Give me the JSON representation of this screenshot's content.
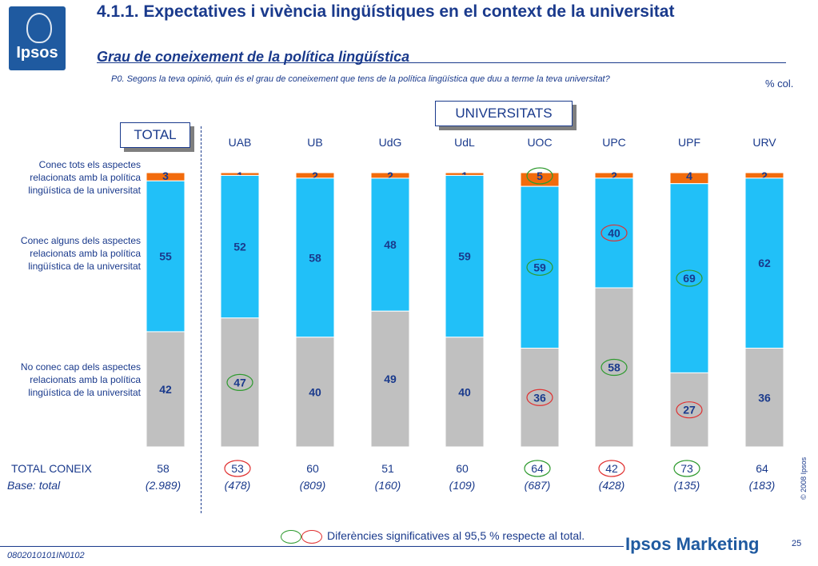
{
  "header": {
    "logo_text": "Ipsos",
    "title": "4.1.1. Expectatives i vivència lingüístiques en el context de la universitat",
    "subtitle": "Grau de coneixement de la política lingüística",
    "question": "P0. Segons la teva opinió, quin és el grau de coneixement que tens de la política lingüística que duu a terme la teva universitat?",
    "unit": "% col."
  },
  "labels": {
    "total_box": "TOTAL",
    "univ_box": "UNIVERSITATS",
    "row_all": [
      "Conec tots els aspectes",
      "relacionats amb la política",
      "lingüística de la universitat"
    ],
    "row_some": [
      "Conec alguns dels aspectes",
      "relacionats amb la política",
      "lingüística de la universitat"
    ],
    "row_none": [
      "No conec cap dels aspectes",
      "relacionats amb la política",
      "lingüística de la universitat"
    ],
    "total_coneix_label": "TOTAL CONEIX",
    "base_label": "Base: total"
  },
  "chart_data": {
    "type": "bar",
    "stacked": true,
    "unit": "% col.",
    "categories": [
      "TOTAL",
      "UAB",
      "UB",
      "UdG",
      "UdL",
      "UOC",
      "UPC",
      "UPF",
      "URV"
    ],
    "series": [
      {
        "name": "Conec tots els aspectes relacionats amb la política lingüística de la universitat",
        "color": "#f26b0c",
        "values": [
          3,
          1,
          2,
          2,
          1,
          5,
          2,
          4,
          2
        ]
      },
      {
        "name": "Conec alguns dels aspectes relacionats amb la política lingüística de la universitat",
        "color": "#21c0f8",
        "values": [
          55,
          52,
          58,
          48,
          59,
          59,
          40,
          69,
          62
        ]
      },
      {
        "name": "No conec cap dels aspectes relacionats amb la política lingüística de la universitat",
        "color": "#c0c0c0",
        "values": [
          42,
          47,
          40,
          49,
          40,
          36,
          58,
          27,
          36
        ]
      }
    ],
    "significance_markers": [
      {
        "category": "UAB",
        "series": 2,
        "direction": "higher"
      },
      {
        "category": "UOC",
        "series": 0,
        "direction": "higher"
      },
      {
        "category": "UOC",
        "series": 1,
        "direction": "higher"
      },
      {
        "category": "UOC",
        "series": 2,
        "direction": "lower"
      },
      {
        "category": "UPC",
        "series": 1,
        "direction": "lower"
      },
      {
        "category": "UPC",
        "series": 2,
        "direction": "higher"
      },
      {
        "category": "UPF",
        "series": 1,
        "direction": "higher"
      },
      {
        "category": "UPF",
        "series": 2,
        "direction": "lower"
      }
    ],
    "total_coneix": [
      "58",
      "53",
      "60",
      "51",
      "60",
      "64",
      "42",
      "73",
      "64"
    ],
    "total_coneix_markers": [
      {
        "category": "UAB",
        "direction": "lower"
      },
      {
        "category": "UOC",
        "direction": "higher"
      },
      {
        "category": "UPC",
        "direction": "lower"
      },
      {
        "category": "UPF",
        "direction": "higher"
      }
    ],
    "base": [
      "(2.989)",
      "(478)",
      "(809)",
      "(160)",
      "(109)",
      "(687)",
      "(428)",
      "(135)",
      "(183)"
    ],
    "colors": {
      "higher": "#2e9a2e",
      "lower": "#e03030",
      "label": "#1a3a8c"
    },
    "ylim": [
      0,
      100
    ],
    "grid": false
  },
  "legend": {
    "text": "Diferències significatives al 95,5 % respecte al total."
  },
  "footer": {
    "copyright": "© 2008 Ipsos",
    "brand": "Ipsos Marketing",
    "page": "25",
    "code": "0802010101IN0102"
  }
}
